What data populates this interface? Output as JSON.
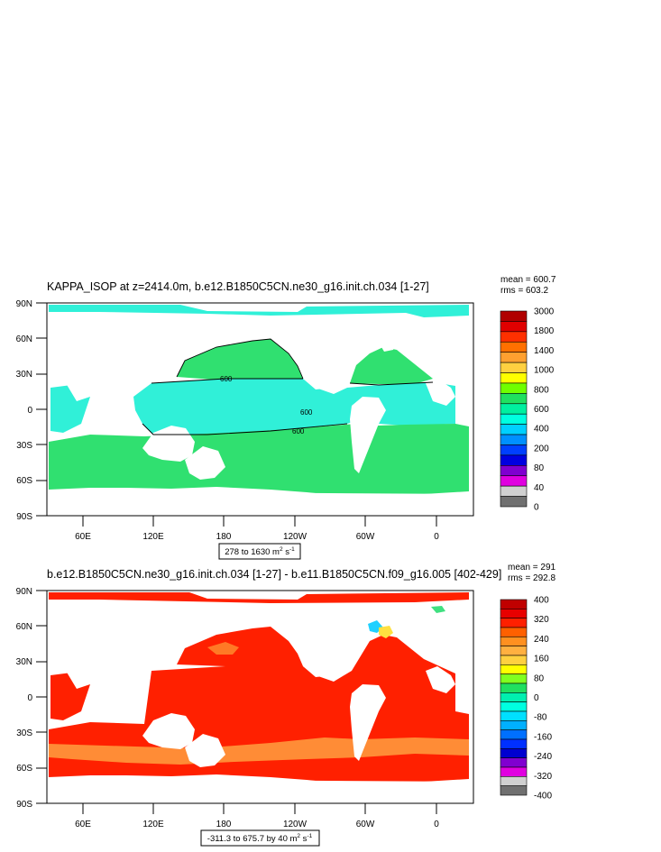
{
  "chart_data": [
    {
      "type": "heatmap",
      "title": "KAPPA_ISOP at z=2414.0m, b.e12.B1850C5CN.ne30_g16.init.ch.034 [1-27]",
      "stats": [
        "mean = 600.7",
        "rms = 603.2"
      ],
      "y_ticks": [
        "90N",
        "60N",
        "30N",
        "0",
        "30S",
        "60S",
        "90S"
      ],
      "x_ticks": [
        "60E",
        "120E",
        "180",
        "120W",
        "60W",
        "0"
      ],
      "range_label": {
        "text": "278 to 1630 m",
        "sup": "2",
        "tail": " s",
        "sup2": "-1"
      },
      "colorbar": {
        "labels": [
          "3000",
          "1800",
          "1400",
          "1000",
          "800",
          "600",
          "400",
          "200",
          "80",
          "40",
          "0"
        ],
        "colors": [
          "#b00000",
          "#e00000",
          "#ff3000",
          "#ff7000",
          "#ffa030",
          "#ffd040",
          "#ffff00",
          "#70ff00",
          "#20e060",
          "#00f0a0",
          "#00ffe0",
          "#00d0ff",
          "#0090ff",
          "#0040ff",
          "#0000e0",
          "#8000d0",
          "#e000e0",
          "#d0d0d0",
          "#707070"
        ]
      },
      "ocean_fill": [
        {
          "zone": "arctic",
          "color": "#30f0d8"
        },
        {
          "zone": "north",
          "color": "#30e070"
        },
        {
          "zone": "tropics",
          "color": "#30f0d8"
        },
        {
          "zone": "south",
          "color": "#30e070"
        }
      ],
      "contour_labels": [
        "600",
        "600",
        "600"
      ]
    },
    {
      "type": "heatmap",
      "title": "b.e12.B1850C5CN.ne30_g16.init.ch.034 [1-27] - b.e11.B1850C5CN.f09_g16.005 [402-429]",
      "stats": [
        "mean = 291",
        "rms = 292.8"
      ],
      "y_ticks": [
        "90N",
        "60N",
        "30N",
        "0",
        "30S",
        "60S",
        "90S"
      ],
      "x_ticks": [
        "60E",
        "120E",
        "180",
        "120W",
        "60W",
        "0"
      ],
      "range_label": {
        "text": "-311.3 to 675.7 by 40 m",
        "sup": "2",
        "tail": " s",
        "sup2": "-1"
      },
      "colorbar": {
        "labels": [
          "400",
          "320",
          "240",
          "160",
          "80",
          "0",
          "-80",
          "-160",
          "-240",
          "-320",
          "-400"
        ],
        "colors": [
          "#c00000",
          "#e80000",
          "#ff2000",
          "#ff6000",
          "#ff9020",
          "#ffb040",
          "#ffd040",
          "#ffff00",
          "#80ff20",
          "#20e060",
          "#00f0b0",
          "#00ffe0",
          "#00e0ff",
          "#00b0ff",
          "#0070ff",
          "#0030ff",
          "#0000d0",
          "#8000d0",
          "#e000e0",
          "#d0d0d0",
          "#707070"
        ]
      },
      "ocean_fill": [
        {
          "zone": "all",
          "color": "#ff2000"
        }
      ]
    }
  ]
}
